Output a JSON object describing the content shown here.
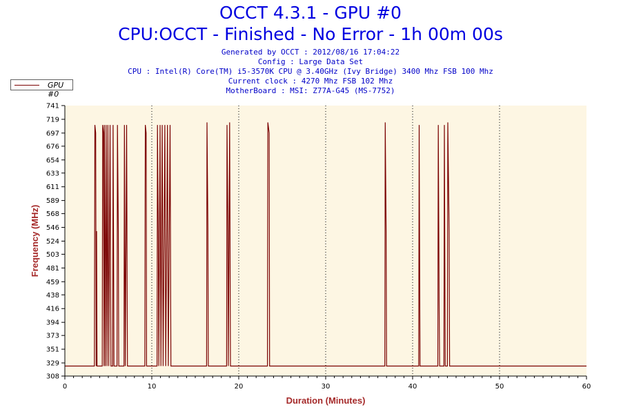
{
  "header": {
    "title": "OCCT 4.3.1 - GPU #0",
    "subtitle": "CPU:OCCT - Finished - No Error - 1h 00m 00s",
    "info_lines": [
      "Generated by OCCT : 2012/08/16 17:04:22",
      "Config : Large Data Set",
      "CPU : Intel(R) Core(TM) i5-3570K CPU @ 3.40GHz (Ivy Bridge) 3400 Mhz FSB 100 Mhz",
      "Current clock : 4270 Mhz FSB 102 Mhz",
      "MotherBoard : MSI: Z77A-G45 (MS-7752)"
    ]
  },
  "colors": {
    "title": "#0000e0",
    "series": "#7a0000",
    "plot_bg": "#fdf6e3",
    "axis_label": "#a52a2a"
  },
  "chart_data": {
    "type": "line",
    "title": "OCCT 4.3.1 - GPU #0",
    "xlabel": "Duration (Minutes)",
    "ylabel": "Frequency (MHz)",
    "xlim": [
      0,
      60
    ],
    "ylim": [
      308,
      741
    ],
    "x_ticks": [
      0,
      10,
      20,
      30,
      40,
      50,
      60
    ],
    "y_ticks": [
      308,
      329,
      351,
      373,
      394,
      416,
      438,
      459,
      481,
      503,
      524,
      546,
      568,
      589,
      611,
      633,
      654,
      676,
      697,
      719,
      741
    ],
    "grid": "vertical dotted at 10-minute intervals",
    "legend": "top-left",
    "baseline_mhz": 324,
    "series": [
      {
        "name": "GPU #0",
        "values": [
          [
            0,
            324
          ],
          [
            3.4,
            324
          ],
          [
            3.45,
            710
          ],
          [
            3.55,
            697
          ],
          [
            3.6,
            324
          ],
          [
            3.65,
            540
          ],
          [
            3.7,
            324
          ],
          [
            4.3,
            324
          ],
          [
            4.35,
            710
          ],
          [
            4.45,
            697
          ],
          [
            4.5,
            324
          ],
          [
            4.55,
            710
          ],
          [
            4.65,
            324
          ],
          [
            4.75,
            710
          ],
          [
            4.85,
            324
          ],
          [
            4.95,
            710
          ],
          [
            5.05,
            324
          ],
          [
            5.2,
            710
          ],
          [
            5.3,
            324
          ],
          [
            5.5,
            324
          ],
          [
            5.55,
            710
          ],
          [
            5.65,
            324
          ],
          [
            6.0,
            324
          ],
          [
            6.05,
            710
          ],
          [
            6.15,
            540
          ],
          [
            6.2,
            324
          ],
          [
            6.8,
            324
          ],
          [
            6.85,
            710
          ],
          [
            6.95,
            324
          ],
          [
            7.1,
            710
          ],
          [
            7.2,
            324
          ],
          [
            9.2,
            324
          ],
          [
            9.25,
            710
          ],
          [
            9.35,
            697
          ],
          [
            9.4,
            324
          ],
          [
            10.6,
            324
          ],
          [
            10.65,
            710
          ],
          [
            10.75,
            540
          ],
          [
            10.8,
            324
          ],
          [
            10.95,
            710
          ],
          [
            11.05,
            324
          ],
          [
            11.2,
            710
          ],
          [
            11.3,
            324
          ],
          [
            11.5,
            710
          ],
          [
            11.6,
            324
          ],
          [
            11.8,
            710
          ],
          [
            11.9,
            324
          ],
          [
            12.1,
            710
          ],
          [
            12.2,
            324
          ],
          [
            16.3,
            324
          ],
          [
            16.35,
            714
          ],
          [
            16.45,
            546
          ],
          [
            16.5,
            324
          ],
          [
            18.6,
            324
          ],
          [
            18.65,
            710
          ],
          [
            18.75,
            540
          ],
          [
            18.8,
            324
          ],
          [
            18.95,
            714
          ],
          [
            19.05,
            324
          ],
          [
            23.3,
            324
          ],
          [
            23.35,
            714
          ],
          [
            23.5,
            697
          ],
          [
            23.55,
            324
          ],
          [
            36.8,
            324
          ],
          [
            36.85,
            714
          ],
          [
            36.95,
            540
          ],
          [
            37.0,
            324
          ],
          [
            40.7,
            324
          ],
          [
            40.75,
            710
          ],
          [
            40.85,
            324
          ],
          [
            42.9,
            324
          ],
          [
            42.95,
            710
          ],
          [
            43.05,
            430
          ],
          [
            43.1,
            324
          ],
          [
            43.6,
            324
          ],
          [
            43.65,
            710
          ],
          [
            43.75,
            324
          ],
          [
            44.0,
            324
          ],
          [
            44.05,
            714
          ],
          [
            44.2,
            540
          ],
          [
            44.25,
            324
          ],
          [
            60,
            324
          ]
        ]
      }
    ]
  }
}
